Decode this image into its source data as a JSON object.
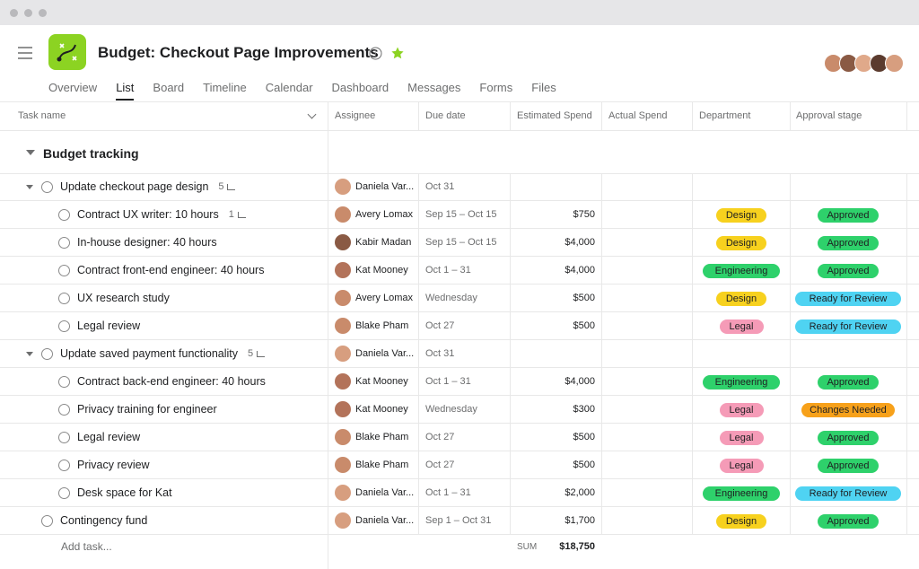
{
  "header": {
    "title": "Budget: Checkout Page Improvements"
  },
  "tabs": [
    {
      "label": "Overview"
    },
    {
      "label": "List",
      "active": true
    },
    {
      "label": "Board"
    },
    {
      "label": "Timeline"
    },
    {
      "label": "Calendar"
    },
    {
      "label": "Dashboard"
    },
    {
      "label": "Messages"
    },
    {
      "label": "Forms"
    },
    {
      "label": "Files"
    }
  ],
  "table": {
    "columns": [
      "Task name",
      "Assignee",
      "Due date",
      "Estimated Spend",
      "Actual Spend",
      "Department",
      "Approval stage"
    ],
    "section": "Budget tracking",
    "rows": [
      {
        "level": 0,
        "expanded": true,
        "task": "Update checkout page design",
        "subtasks": "5",
        "assignee": "Daniela Var...",
        "due": "Oct 31"
      },
      {
        "level": 1,
        "task": "Contract UX writer: 10 hours",
        "subtasks": "1",
        "assignee": "Avery Lomax",
        "due": "Sep 15 – Oct 15",
        "spend": "$750",
        "department": {
          "label": "Design",
          "color": "#f7d11e"
        },
        "approval": {
          "label": "Approved",
          "color": "#2ed16b"
        }
      },
      {
        "level": 1,
        "task": "In-house designer: 40 hours",
        "assignee": "Kabir Madan",
        "due": "Sep 15 – Oct 15",
        "spend": "$4,000",
        "department": {
          "label": "Design",
          "color": "#f7d11e"
        },
        "approval": {
          "label": "Approved",
          "color": "#2ed16b"
        }
      },
      {
        "level": 1,
        "task": "Contract front-end engineer: 40 hours",
        "assignee": "Kat Mooney",
        "due": "Oct 1 – 31",
        "spend": "$4,000",
        "department": {
          "label": "Engineering",
          "color": "#2ed16b"
        },
        "approval": {
          "label": "Approved",
          "color": "#2ed16b"
        }
      },
      {
        "level": 1,
        "task": "UX research study",
        "assignee": "Avery Lomax",
        "due": "Wednesday",
        "spend": "$500",
        "department": {
          "label": "Design",
          "color": "#f7d11e"
        },
        "approval": {
          "label": "Ready for Review",
          "color": "#4fd3f2"
        }
      },
      {
        "level": 1,
        "task": "Legal review",
        "assignee": "Blake Pham",
        "due": "Oct 27",
        "spend": "$500",
        "department": {
          "label": "Legal",
          "color": "#f59bb7"
        },
        "approval": {
          "label": "Ready for Review",
          "color": "#4fd3f2"
        }
      },
      {
        "level": 0,
        "expanded": true,
        "task": "Update saved payment functionality",
        "subtasks": "5",
        "assignee": "Daniela Var...",
        "due": "Oct 31"
      },
      {
        "level": 1,
        "task": "Contract back-end engineer: 40 hours",
        "assignee": "Kat Mooney",
        "due": "Oct 1 – 31",
        "spend": "$4,000",
        "department": {
          "label": "Engineering",
          "color": "#2ed16b"
        },
        "approval": {
          "label": "Approved",
          "color": "#2ed16b"
        }
      },
      {
        "level": 1,
        "task": "Privacy training for engineer",
        "assignee": "Kat Mooney",
        "due": "Wednesday",
        "spend": "$300",
        "department": {
          "label": "Legal",
          "color": "#f59bb7"
        },
        "approval": {
          "label": "Changes Needed",
          "color": "#f7a11a"
        }
      },
      {
        "level": 1,
        "task": "Legal review",
        "assignee": "Blake Pham",
        "due": "Oct 27",
        "spend": "$500",
        "department": {
          "label": "Legal",
          "color": "#f59bb7"
        },
        "approval": {
          "label": "Approved",
          "color": "#2ed16b"
        }
      },
      {
        "level": 1,
        "task": "Privacy review",
        "assignee": "Blake Pham",
        "due": "Oct 27",
        "spend": "$500",
        "department": {
          "label": "Legal",
          "color": "#f59bb7"
        },
        "approval": {
          "label": "Approved",
          "color": "#2ed16b"
        }
      },
      {
        "level": 1,
        "task": "Desk space for Kat",
        "assignee": "Daniela Var...",
        "due": "Oct 1 – 31",
        "spend": "$2,000",
        "department": {
          "label": "Engineering",
          "color": "#2ed16b"
        },
        "approval": {
          "label": "Ready for Review",
          "color": "#4fd3f2"
        }
      },
      {
        "level": 0,
        "task": "Contingency fund",
        "assignee": "Daniela Var...",
        "due": "Sep 1 – Oct 31",
        "spend": "$1,700",
        "department": {
          "label": "Design",
          "color": "#f7d11e"
        },
        "approval": {
          "label": "Approved",
          "color": "#2ed16b"
        }
      }
    ],
    "add_task": "Add task...",
    "sum_label": "SUM",
    "sum_value": "$18,750"
  }
}
